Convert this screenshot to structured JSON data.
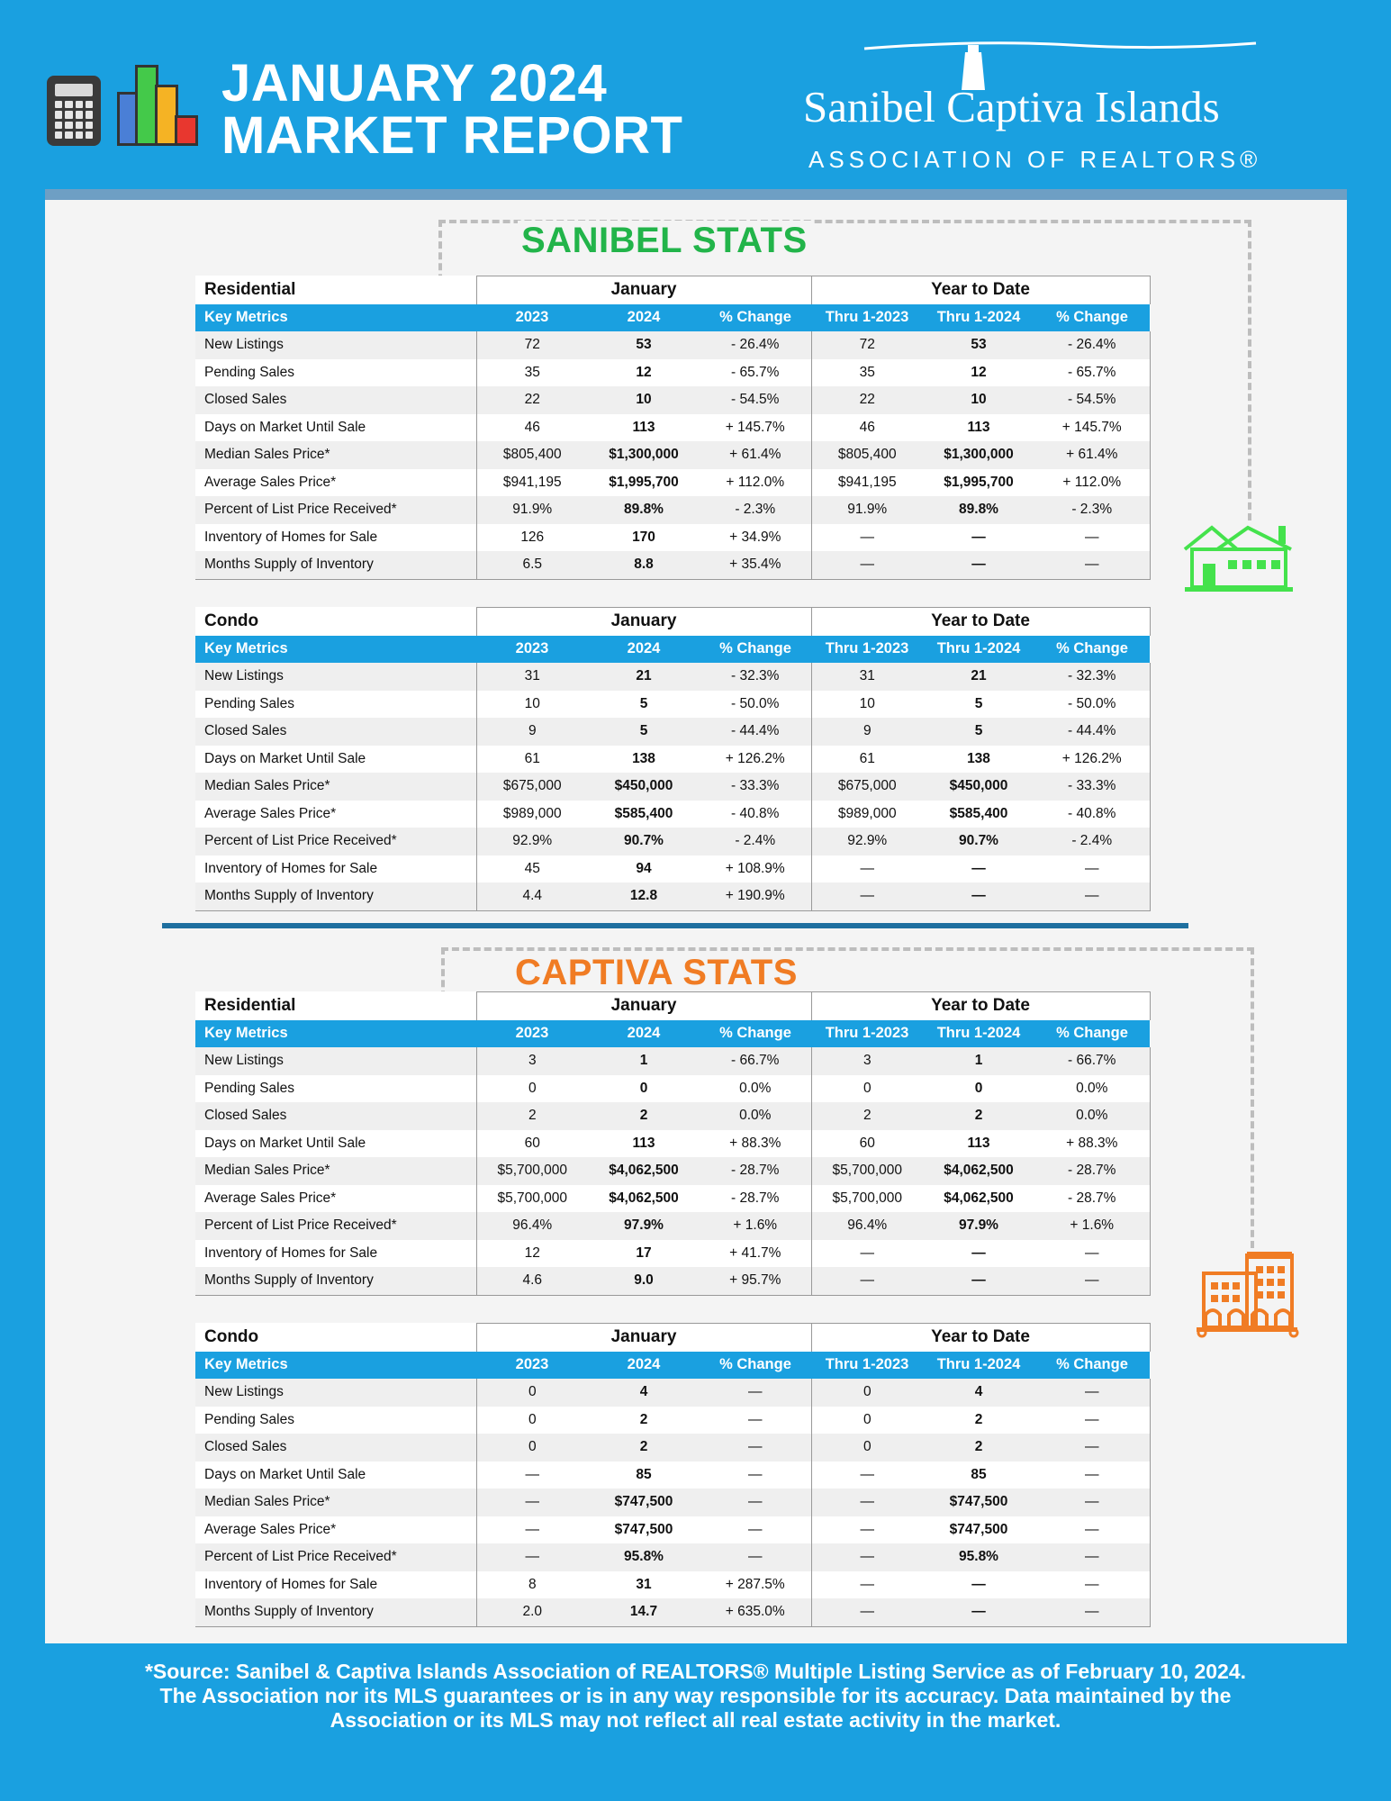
{
  "header": {
    "title_line1": "JANUARY 2024",
    "title_line2": "MARKET REPORT",
    "logo_name": "Sanibel Captiva Islands",
    "logo_assoc": "ASSOCIATION OF REALTORS®"
  },
  "colors": {
    "blue": "#1aa0e0",
    "green": "#22b44a",
    "orange": "#f07c24",
    "icon_green": "#44e24c"
  },
  "columns": {
    "january": "January",
    "ytd": "Year to Date",
    "key_metrics": "Key Metrics",
    "c2023": "2023",
    "c2024": "2024",
    "pct": "% Change",
    "thru2023": "Thru 1-2023",
    "thru2024": "Thru 1-2024"
  },
  "sanibel": {
    "title": "SANIBEL STATS",
    "residential": {
      "label": "Residential",
      "rows": [
        [
          "New Listings",
          "72",
          "53",
          "- 26.4%",
          "72",
          "53",
          "- 26.4%"
        ],
        [
          "Pending Sales",
          "35",
          "12",
          "- 65.7%",
          "35",
          "12",
          "- 65.7%"
        ],
        [
          "Closed Sales",
          "22",
          "10",
          "- 54.5%",
          "22",
          "10",
          "- 54.5%"
        ],
        [
          "Days on Market Until Sale",
          "46",
          "113",
          "+ 145.7%",
          "46",
          "113",
          "+ 145.7%"
        ],
        [
          "Median Sales Price*",
          "$805,400",
          "$1,300,000",
          "+ 61.4%",
          "$805,400",
          "$1,300,000",
          "+ 61.4%"
        ],
        [
          "Average Sales Price*",
          "$941,195",
          "$1,995,700",
          "+ 112.0%",
          "$941,195",
          "$1,995,700",
          "+ 112.0%"
        ],
        [
          "Percent of List Price Received*",
          "91.9%",
          "89.8%",
          "- 2.3%",
          "91.9%",
          "89.8%",
          "- 2.3%"
        ],
        [
          "Inventory of Homes for Sale",
          "126",
          "170",
          "+ 34.9%",
          "—",
          "—",
          "—"
        ],
        [
          "Months Supply of Inventory",
          "6.5",
          "8.8",
          "+ 35.4%",
          "—",
          "—",
          "—"
        ]
      ]
    },
    "condo": {
      "label": "Condo",
      "rows": [
        [
          "New Listings",
          "31",
          "21",
          "- 32.3%",
          "31",
          "21",
          "- 32.3%"
        ],
        [
          "Pending Sales",
          "10",
          "5",
          "- 50.0%",
          "10",
          "5",
          "- 50.0%"
        ],
        [
          "Closed Sales",
          "9",
          "5",
          "- 44.4%",
          "9",
          "5",
          "- 44.4%"
        ],
        [
          "Days on Market Until Sale",
          "61",
          "138",
          "+ 126.2%",
          "61",
          "138",
          "+ 126.2%"
        ],
        [
          "Median Sales Price*",
          "$675,000",
          "$450,000",
          "- 33.3%",
          "$675,000",
          "$450,000",
          "- 33.3%"
        ],
        [
          "Average Sales Price*",
          "$989,000",
          "$585,400",
          "- 40.8%",
          "$989,000",
          "$585,400",
          "- 40.8%"
        ],
        [
          "Percent of List Price Received*",
          "92.9%",
          "90.7%",
          "- 2.4%",
          "92.9%",
          "90.7%",
          "- 2.4%"
        ],
        [
          "Inventory of Homes for Sale",
          "45",
          "94",
          "+ 108.9%",
          "—",
          "—",
          "—"
        ],
        [
          "Months Supply of Inventory",
          "4.4",
          "12.8",
          "+ 190.9%",
          "—",
          "—",
          "—"
        ]
      ]
    }
  },
  "captiva": {
    "title": "CAPTIVA STATS",
    "residential": {
      "label": "Residential",
      "rows": [
        [
          "New Listings",
          "3",
          "1",
          "- 66.7%",
          "3",
          "1",
          "- 66.7%"
        ],
        [
          "Pending Sales",
          "0",
          "0",
          "0.0%",
          "0",
          "0",
          "0.0%"
        ],
        [
          "Closed Sales",
          "2",
          "2",
          "0.0%",
          "2",
          "2",
          "0.0%"
        ],
        [
          "Days on Market Until Sale",
          "60",
          "113",
          "+ 88.3%",
          "60",
          "113",
          "+ 88.3%"
        ],
        [
          "Median Sales Price*",
          "$5,700,000",
          "$4,062,500",
          "- 28.7%",
          "$5,700,000",
          "$4,062,500",
          "- 28.7%"
        ],
        [
          "Average Sales Price*",
          "$5,700,000",
          "$4,062,500",
          "- 28.7%",
          "$5,700,000",
          "$4,062,500",
          "- 28.7%"
        ],
        [
          "Percent of List Price Received*",
          "96.4%",
          "97.9%",
          "+ 1.6%",
          "96.4%",
          "97.9%",
          "+ 1.6%"
        ],
        [
          "Inventory of Homes for Sale",
          "12",
          "17",
          "+ 41.7%",
          "—",
          "—",
          "—"
        ],
        [
          "Months Supply of Inventory",
          "4.6",
          "9.0",
          "+ 95.7%",
          "—",
          "—",
          "—"
        ]
      ]
    },
    "condo": {
      "label": "Condo",
      "rows": [
        [
          "New Listings",
          "0",
          "4",
          "—",
          "0",
          "4",
          "—"
        ],
        [
          "Pending Sales",
          "0",
          "2",
          "—",
          "0",
          "2",
          "—"
        ],
        [
          "Closed Sales",
          "0",
          "2",
          "—",
          "0",
          "2",
          "—"
        ],
        [
          "Days on Market Until Sale",
          "—",
          "85",
          "—",
          "—",
          "85",
          "—"
        ],
        [
          "Median Sales Price*",
          "—",
          "$747,500",
          "—",
          "—",
          "$747,500",
          "—"
        ],
        [
          "Average Sales Price*",
          "—",
          "$747,500",
          "—",
          "—",
          "$747,500",
          "—"
        ],
        [
          "Percent of List Price Received*",
          "—",
          "95.8%",
          "—",
          "—",
          "95.8%",
          "—"
        ],
        [
          "Inventory of Homes for Sale",
          "8",
          "31",
          "+ 287.5%",
          "—",
          "—",
          "—"
        ],
        [
          "Months Supply of Inventory",
          "2.0",
          "14.7",
          "+ 635.0%",
          "—",
          "—",
          "—"
        ]
      ]
    }
  },
  "footer": {
    "line1": "*Source: Sanibel & Captiva Islands Association of REALTORS® Multiple Listing Service as of February 10, 2024.",
    "line2": "The Association nor its MLS guarantees or is in any way responsible for its accuracy. Data maintained by the",
    "line3": "Association or its MLS may not reflect all real estate activity in the market."
  }
}
